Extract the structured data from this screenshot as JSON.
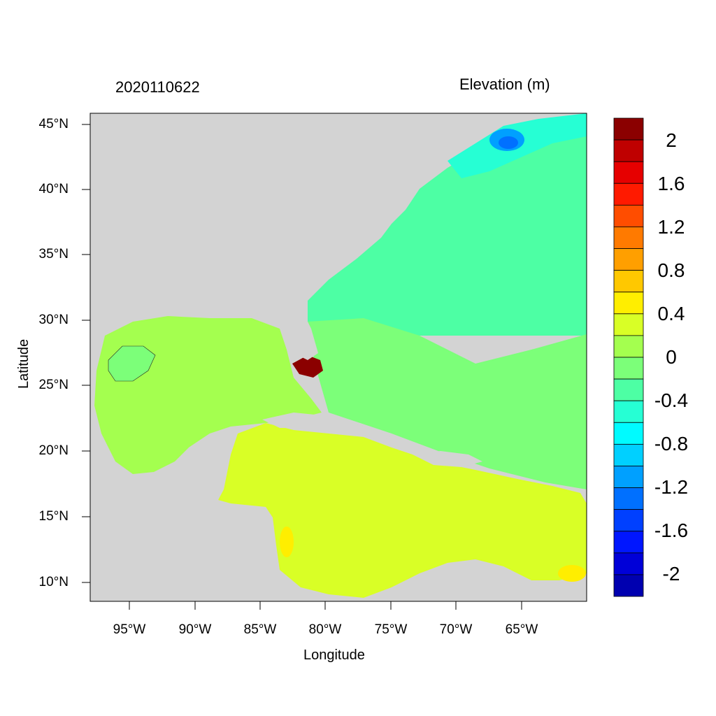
{
  "header": {
    "date": "2020110622",
    "variable": "Elevation (m)"
  },
  "axes": {
    "xlabel": "Longitude",
    "ylabel": "Latitude",
    "xticks": [
      "95°W",
      "90°W",
      "85°W",
      "80°W",
      "75°W",
      "70°W",
      "65°W"
    ],
    "yticks": [
      "45°N",
      "40°N",
      "35°N",
      "30°N",
      "25°N",
      "20°N",
      "15°N",
      "10°N"
    ]
  },
  "colorbar": {
    "labels": [
      "2",
      "1.6",
      "1.2",
      "0.8",
      "0.4",
      "0",
      "-0.4",
      "-0.8",
      "-1.2",
      "-1.6",
      "-2"
    ],
    "colors": [
      "#8b0000",
      "#bf0000",
      "#e60000",
      "#ff1a00",
      "#ff4d00",
      "#ff7a00",
      "#ff9f00",
      "#ffc800",
      "#ffee00",
      "#d9ff26",
      "#a4ff4f",
      "#7cff79",
      "#4dffa4",
      "#26ffd4",
      "#00fbff",
      "#00d0ff",
      "#00a0ff",
      "#0070ff",
      "#0040ff",
      "#0016ff",
      "#0000d8",
      "#0000b0"
    ]
  },
  "map": {
    "land_color": "#d3d3d3",
    "ocean_base_color": "#7cff79",
    "atlantic_color": "#4dffa4",
    "caribbean_color": "#d9ff26",
    "gulf_color": "#a4ff4f",
    "surge_color": "#8b0000",
    "low_center_color": "#0070ff"
  }
}
